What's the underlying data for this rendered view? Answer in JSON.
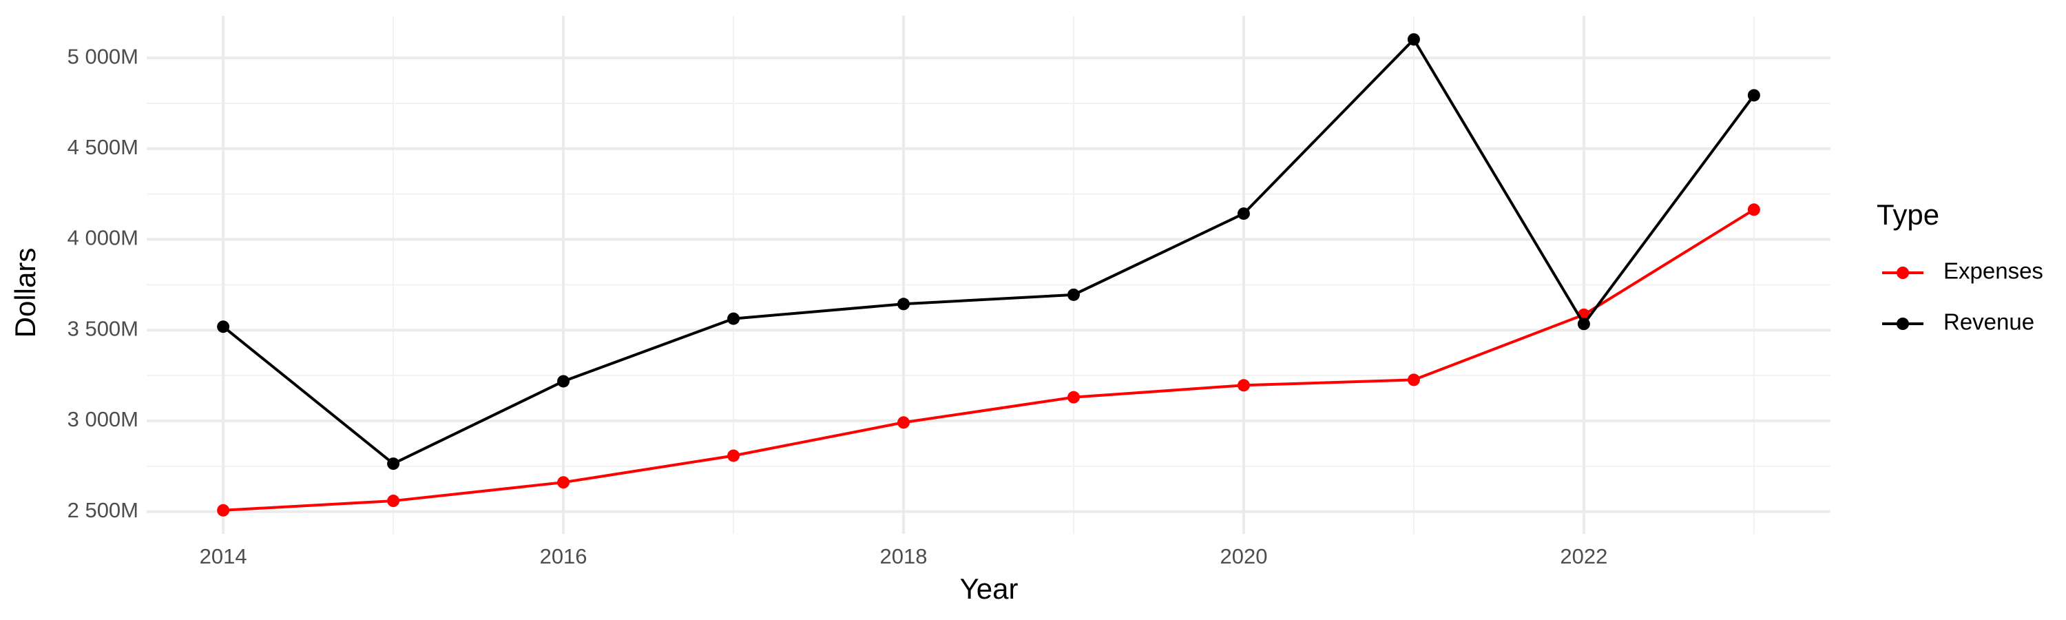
{
  "chart_data": {
    "type": "line",
    "x_label": "Year",
    "y_label": "Dollars",
    "legend_title": "Type",
    "x": [
      2014,
      2015,
      2016,
      2017,
      2018,
      2019,
      2020,
      2021,
      2022,
      2023
    ],
    "series": [
      {
        "name": "Expenses",
        "color": "#ff0000",
        "values": [
          2507,
          2559,
          2661,
          2808,
          2991,
          3130,
          3196,
          3226,
          3585,
          4164
        ]
      },
      {
        "name": "Revenue",
        "color": "#000000",
        "values": [
          3519,
          2764,
          3218,
          3563,
          3644,
          3695,
          4142,
          5102,
          3534,
          4794
        ]
      }
    ],
    "xlim": [
      2013.55,
      2023.45
    ],
    "xticks": [
      2014,
      2016,
      2018,
      2020,
      2022
    ],
    "ylim": [
      2377,
      5232
    ],
    "yticks": [
      {
        "value": 2500,
        "label": "2 500M"
      },
      {
        "value": 3000,
        "label": "3 000M"
      },
      {
        "value": 3500,
        "label": "3 500M"
      },
      {
        "value": 4000,
        "label": "4 000M"
      },
      {
        "value": 4500,
        "label": "4 500M"
      },
      {
        "value": 5000,
        "label": "5 000M"
      }
    ],
    "grid": true,
    "legend": "right"
  }
}
